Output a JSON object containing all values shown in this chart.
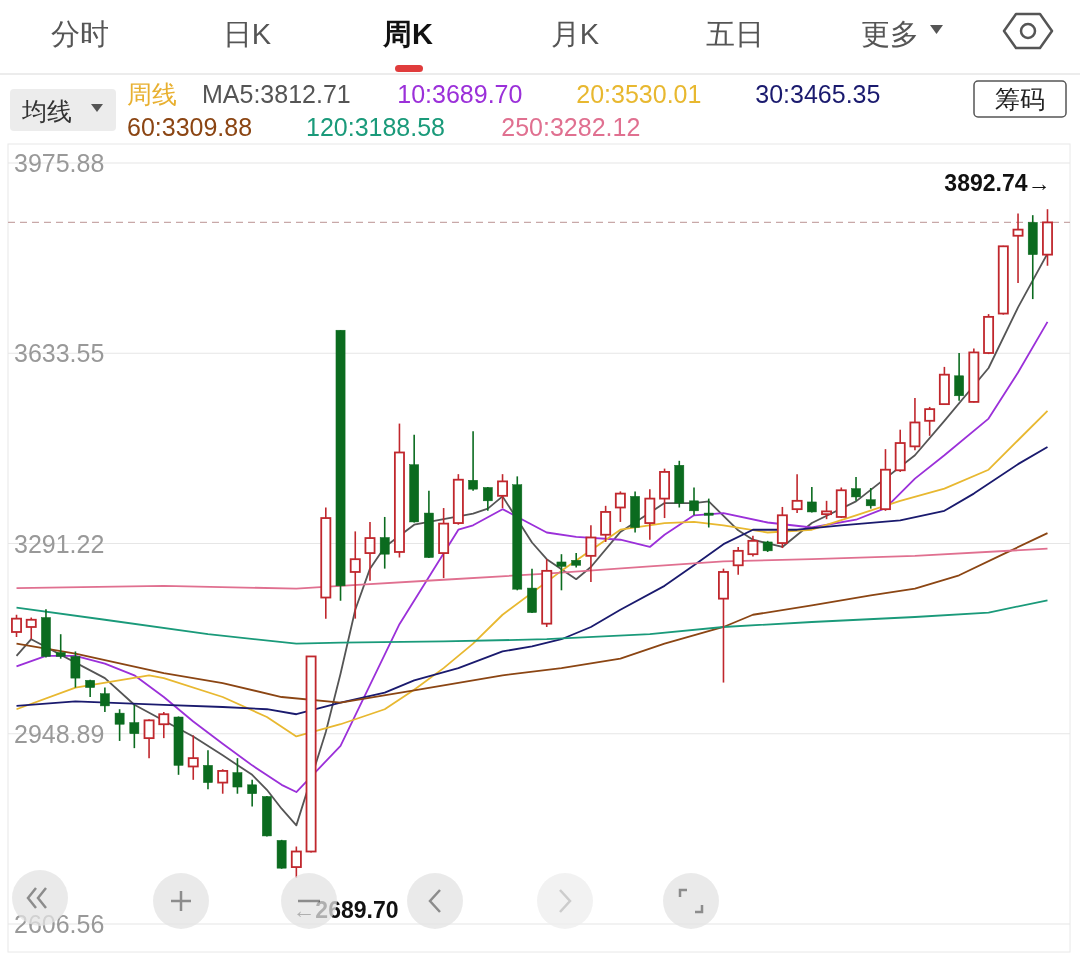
{
  "chart_data": {
    "type": "candlestick",
    "legend": "top left",
    "legend_title": "周线",
    "grid": "y",
    "tick_labels": "y",
    "ylim": [
      2606.56,
      3975.88
    ],
    "yticks": [
      2606.56,
      2948.89,
      3291.22,
      3633.55,
      3975.88
    ],
    "categories": [
      null,
      null,
      null,
      null,
      null,
      null,
      null,
      null,
      null,
      null,
      null,
      null,
      null,
      null,
      null,
      null,
      null,
      null,
      null,
      null,
      null,
      null,
      null,
      null,
      null,
      null,
      null,
      null,
      null,
      null,
      null,
      null,
      null,
      null,
      null,
      null,
      null,
      null,
      null,
      null,
      null,
      null,
      null,
      null,
      null,
      null,
      null,
      null,
      null,
      null,
      null,
      null,
      null,
      null,
      null,
      null,
      null,
      null,
      null,
      null,
      null,
      null,
      null,
      null,
      null,
      null,
      null,
      null,
      null,
      null,
      null
    ],
    "ohlc": [
      [
        3132,
        3163,
        3123,
        3156
      ],
      [
        3141,
        3158,
        3119,
        3154
      ],
      [
        3158,
        3173,
        3086,
        3088
      ],
      [
        3095,
        3128,
        3084,
        3088
      ],
      [
        3088,
        3097,
        3032,
        3049
      ],
      [
        3045,
        3046,
        3015,
        3032
      ],
      [
        3021,
        3032,
        2988,
        2999
      ],
      [
        2986,
        2993,
        2936,
        2966
      ],
      [
        2969,
        3001,
        2923,
        2949
      ],
      [
        2941,
        2975,
        2905,
        2973
      ],
      [
        2966,
        2988,
        2941,
        2984
      ],
      [
        2979,
        2980,
        2875,
        2892
      ],
      [
        2890,
        2946,
        2866,
        2905
      ],
      [
        2892,
        2919,
        2849,
        2861
      ],
      [
        2861,
        2885,
        2841,
        2882
      ],
      [
        2879,
        2905,
        2841,
        2853
      ],
      [
        2857,
        2866,
        2818,
        2841
      ],
      [
        2836,
        2837,
        2764,
        2765
      ],
      [
        2757,
        2758,
        2706,
        2707
      ],
      [
        2709,
        2746,
        2689.7,
        2737
      ],
      [
        2737,
        3089,
        2735,
        3088
      ],
      [
        3194,
        3356,
        3156,
        3337
      ],
      [
        3675,
        3675,
        3188,
        3215
      ],
      [
        3240,
        3313,
        3156,
        3263
      ],
      [
        3274,
        3330,
        3224,
        3301
      ],
      [
        3302,
        3339,
        3246,
        3272
      ],
      [
        3276,
        3507,
        3266,
        3455
      ],
      [
        3433,
        3487,
        3329,
        3330
      ],
      [
        3346,
        3386,
        3265,
        3266
      ],
      [
        3274,
        3355,
        3229,
        3327
      ],
      [
        3328,
        3416,
        3325,
        3406
      ],
      [
        3405,
        3493,
        3386,
        3389
      ],
      [
        3392,
        3393,
        3350,
        3368
      ],
      [
        3377,
        3416,
        3355,
        3403
      ],
      [
        3397,
        3412,
        3207,
        3209
      ],
      [
        3211,
        3246,
        3166,
        3167
      ],
      [
        3147,
        3263,
        3141,
        3242
      ],
      [
        3258,
        3272,
        3207,
        3250
      ],
      [
        3261,
        3274,
        3248,
        3252
      ],
      [
        3269,
        3324,
        3222,
        3302
      ],
      [
        3307,
        3359,
        3294,
        3348
      ],
      [
        3356,
        3385,
        3330,
        3381
      ],
      [
        3376,
        3385,
        3311,
        3320
      ],
      [
        3328,
        3389,
        3298,
        3372
      ],
      [
        3372,
        3426,
        3337,
        3420
      ],
      [
        3432,
        3440,
        3356,
        3364
      ],
      [
        3368,
        3392,
        3342,
        3350
      ],
      [
        3346,
        3372,
        3320,
        3342
      ],
      [
        3192,
        3246,
        3041,
        3240
      ],
      [
        3252,
        3285,
        3235,
        3278
      ],
      [
        3272,
        3305,
        3268,
        3296
      ],
      [
        3294,
        3296,
        3276,
        3278
      ],
      [
        3292,
        3357,
        3283,
        3342
      ],
      [
        3353,
        3416,
        3346,
        3368
      ],
      [
        3366,
        3393,
        3347,
        3348
      ],
      [
        3344,
        3368,
        3335,
        3349
      ],
      [
        3339,
        3392,
        3337,
        3387
      ],
      [
        3390,
        3411,
        3368,
        3375
      ],
      [
        3370,
        3391,
        3354,
        3359
      ],
      [
        3353,
        3461,
        3350,
        3424
      ],
      [
        3423,
        3496,
        3420,
        3472
      ],
      [
        3466,
        3553,
        3459,
        3509
      ],
      [
        3512,
        3537,
        3485,
        3533
      ],
      [
        3542,
        3609,
        3541,
        3595
      ],
      [
        3593,
        3634,
        3548,
        3557
      ],
      [
        3546,
        3642,
        3545,
        3635
      ],
      [
        3634,
        3704,
        3632,
        3699
      ],
      [
        3705,
        3827,
        3703,
        3826
      ],
      [
        3845,
        3885,
        3760,
        3856
      ],
      [
        3869,
        3882,
        3731,
        3811
      ],
      [
        3811,
        3892.74,
        3791,
        3869
      ]
    ],
    "series": [
      {
        "type": "line",
        "name": "MA5:3812.71",
        "color": "#555555",
        "values": [
          3089,
          3119,
          null,
          null,
          null,
          null,
          3049,
          null,
          3001,
          null,
          null,
          null,
          2944,
          null,
          2910,
          null,
          2875,
          2848,
          2814,
          2784,
          null,
          2952,
          3057,
          3172,
          3246,
          3285,
          null,
          3325,
          null,
          null,
          null,
          3345,
          3354,
          3376,
          null,
          3293,
          3263,
          null,
          3227,
          3249,
          null,
          3312,
          null,
          null,
          3364,
          null,
          3364,
          3367,
          null,
          3315,
          3298,
          null,
          3285,
          null,
          3328,
          null,
          null,
          3367,
          null,
          null,
          null,
          3450,
          null,
          3512,
          null,
          null,
          3607,
          null,
          3716,
          null,
          3813
        ]
      },
      {
        "type": "line",
        "name": "10:3689.70",
        "color": "#9b30d9",
        "values": [
          3070,
          null,
          3089,
          null,
          3089,
          null,
          3075,
          null,
          3054,
          null,
          3015,
          null,
          2971,
          null,
          2931,
          null,
          2892,
          null,
          2857,
          2844,
          null,
          null,
          2927,
          null,
          null,
          null,
          3146,
          null,
          null,
          null,
          3316,
          3324,
          null,
          3353,
          null,
          null,
          3311,
          null,
          3303,
          null,
          null,
          3298,
          null,
          3285,
          3307,
          null,
          3342,
          null,
          3346,
          null,
          null,
          3329,
          null,
          null,
          3320,
          null,
          null,
          3334,
          null,
          3355,
          null,
          3408,
          null,
          3450,
          null,
          null,
          3516,
          null,
          3599,
          null,
          3690
        ]
      },
      {
        "type": "line",
        "name": "20:3530.01",
        "color": "#e8b830",
        "values": [
          2993,
          null,
          null,
          null,
          3032,
          null,
          null,
          null,
          null,
          3054,
          3049,
          null,
          null,
          null,
          3015,
          null,
          null,
          2979,
          null,
          2944,
          null,
          null,
          2966,
          null,
          null,
          2993,
          null,
          3028,
          null,
          3067,
          null,
          3111,
          null,
          3163,
          null,
          null,
          null,
          3242,
          null,
          null,
          null,
          3316,
          null,
          null,
          3328,
          null,
          3330,
          null,
          3324,
          null,
          null,
          3311,
          null,
          null,
          3316,
          null,
          null,
          3342,
          null,
          null,
          3368,
          null,
          null,
          3390,
          null,
          null,
          3424,
          null,
          3477,
          null,
          3530
        ]
      },
      {
        "type": "line",
        "name": "30:3465.35",
        "color": "#1a1a6e",
        "values": [
          2999,
          null,
          null,
          null,
          3007,
          null,
          null,
          null,
          null,
          null,
          3001,
          null,
          null,
          null,
          2997,
          null,
          null,
          2993,
          null,
          2984,
          null,
          null,
          3005,
          null,
          null,
          3023,
          null,
          3045,
          null,
          null,
          3067,
          null,
          null,
          3097,
          null,
          3106,
          null,
          3119,
          null,
          3141,
          null,
          3172,
          null,
          null,
          3215,
          null,
          3252,
          null,
          3290,
          null,
          3316,
          null,
          null,
          3316,
          null,
          null,
          3324,
          null,
          null,
          null,
          3333,
          null,
          null,
          3350,
          null,
          3381,
          null,
          null,
          3434,
          null,
          3465
        ]
      },
      {
        "type": "line",
        "name": "60:3309.88",
        "color": "#8b4513",
        "values": [
          3111,
          null,
          null,
          null,
          3093,
          null,
          null,
          null,
          null,
          null,
          3058,
          null,
          null,
          null,
          3040,
          null,
          null,
          null,
          3015,
          null,
          null,
          null,
          3005,
          null,
          null,
          null,
          null,
          3027,
          null,
          null,
          null,
          null,
          null,
          3054,
          null,
          null,
          null,
          3067,
          null,
          null,
          null,
          3084,
          null,
          null,
          3111,
          null,
          null,
          null,
          3141,
          null,
          3163,
          null,
          null,
          null,
          3180,
          null,
          null,
          null,
          3198,
          null,
          null,
          3210,
          null,
          null,
          3234,
          null,
          null,
          3272,
          null,
          null,
          3310
        ]
      },
      {
        "type": "line",
        "name": "120:3188.58",
        "color": "#1a9a7a",
        "values": [
          3176,
          null,
          null,
          null,
          null,
          null,
          3154,
          null,
          null,
          null,
          null,
          null,
          null,
          3128,
          null,
          null,
          null,
          null,
          null,
          3111,
          null,
          null,
          3113,
          null,
          null,
          null,
          null,
          null,
          null,
          3115,
          null,
          null,
          null,
          null,
          null,
          null,
          3119,
          null,
          null,
          null,
          null,
          null,
          null,
          3128,
          null,
          null,
          null,
          null,
          3141,
          null,
          null,
          null,
          null,
          null,
          3150,
          null,
          null,
          null,
          null,
          null,
          null,
          3159,
          null,
          null,
          null,
          null,
          3167,
          null,
          null,
          null,
          3189
        ]
      },
      {
        "type": "line",
        "name": "250:3282.12",
        "color": "#e07090",
        "values": [
          3211,
          null,
          null,
          null,
          null,
          null,
          null,
          null,
          null,
          null,
          3215,
          null,
          null,
          null,
          null,
          null,
          null,
          null,
          null,
          3210,
          null,
          null,
          3215,
          null,
          null,
          null,
          null,
          null,
          null,
          3226,
          null,
          null,
          null,
          null,
          null,
          null,
          3237,
          null,
          null,
          null,
          null,
          null,
          null,
          3250,
          null,
          null,
          null,
          null,
          3259,
          null,
          null,
          null,
          null,
          null,
          3263,
          null,
          null,
          null,
          null,
          null,
          null,
          3269,
          null,
          null,
          null,
          null,
          null,
          null,
          null,
          null,
          3282
        ]
      }
    ],
    "ref_lines": [
      {
        "axis": "y",
        "value": 3869,
        "line_style": "dashed",
        "color": "#c8a8a8"
      }
    ],
    "annotations": [
      "分时",
      "日K",
      "周K",
      "月K",
      "五日",
      "更多",
      "均线",
      "筹码",
      "3892.74→",
      "←2689.70"
    ]
  }
}
